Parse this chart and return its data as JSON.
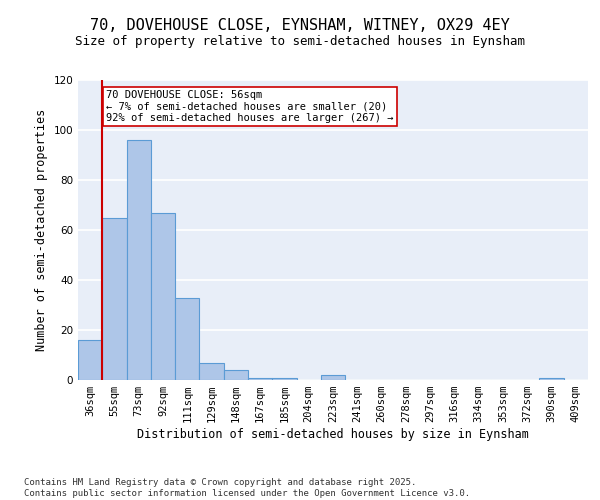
{
  "title_line1": "70, DOVEHOUSE CLOSE, EYNSHAM, WITNEY, OX29 4EY",
  "title_line2": "Size of property relative to semi-detached houses in Eynsham",
  "xlabel": "Distribution of semi-detached houses by size in Eynsham",
  "ylabel": "Number of semi-detached properties",
  "categories": [
    "36sqm",
    "55sqm",
    "73sqm",
    "92sqm",
    "111sqm",
    "129sqm",
    "148sqm",
    "167sqm",
    "185sqm",
    "204sqm",
    "223sqm",
    "241sqm",
    "260sqm",
    "278sqm",
    "297sqm",
    "316sqm",
    "334sqm",
    "353sqm",
    "372sqm",
    "390sqm",
    "409sqm"
  ],
  "values": [
    16,
    65,
    96,
    67,
    33,
    7,
    4,
    1,
    1,
    0,
    2,
    0,
    0,
    0,
    0,
    0,
    0,
    0,
    0,
    1,
    0
  ],
  "bar_color": "#aec6e8",
  "bar_edge_color": "#5b9bd5",
  "subject_line_index": 1,
  "subject_line_color": "#cc0000",
  "annotation_text": "70 DOVEHOUSE CLOSE: 56sqm\n← 7% of semi-detached houses are smaller (20)\n92% of semi-detached houses are larger (267) →",
  "ylim": [
    0,
    120
  ],
  "yticks": [
    0,
    20,
    40,
    60,
    80,
    100,
    120
  ],
  "background_color": "#e8eef8",
  "grid_color": "#ffffff",
  "footer_text": "Contains HM Land Registry data © Crown copyright and database right 2025.\nContains public sector information licensed under the Open Government Licence v3.0.",
  "title_fontsize": 11,
  "subtitle_fontsize": 9,
  "axis_label_fontsize": 8.5,
  "tick_fontsize": 7.5,
  "annotation_fontsize": 7.5,
  "footer_fontsize": 6.5
}
